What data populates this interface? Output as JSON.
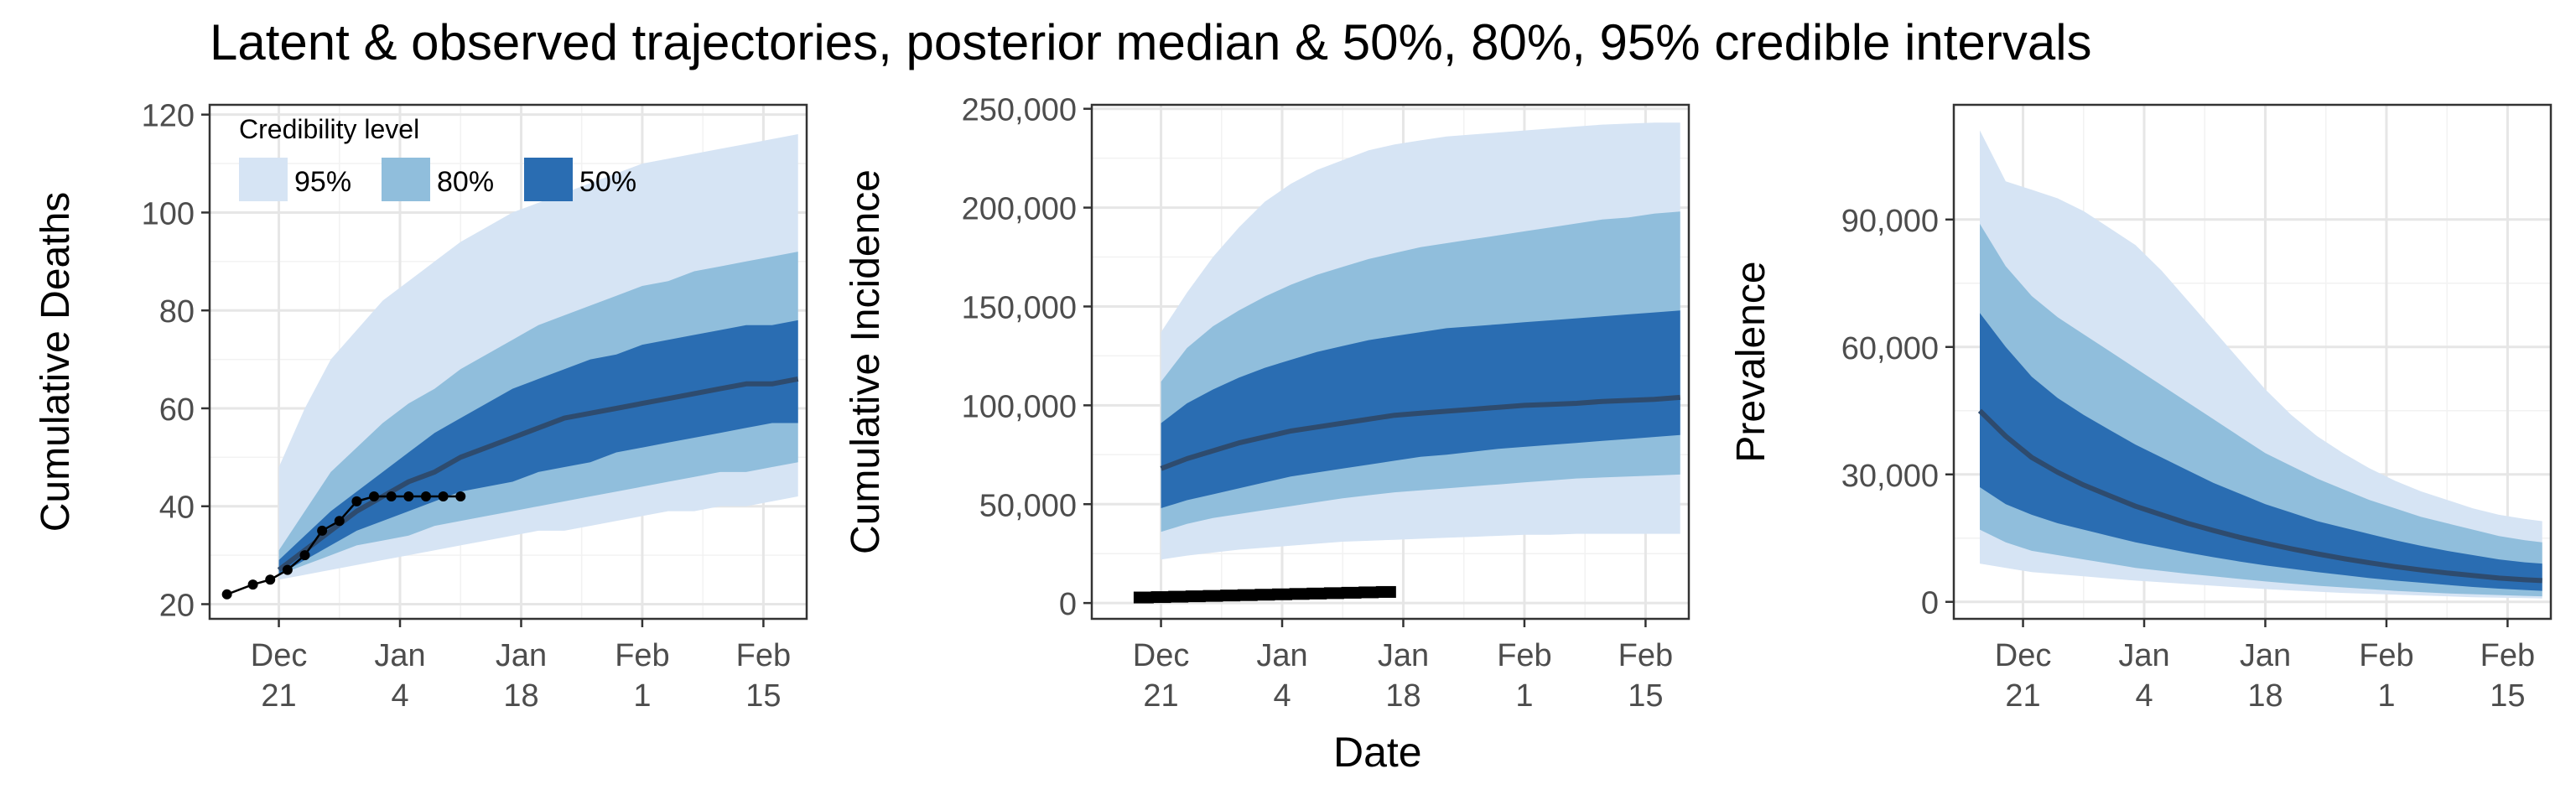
{
  "title": "Latent & observed trajectories, posterior median & 50%, 80%, 95% credible intervals",
  "xlabel": "Date",
  "colors": {
    "band95": "#d6e4f4",
    "band80": "#90bedc",
    "band50": "#2a6db2",
    "median": "#2e4b6e",
    "observed": "#000000",
    "grid_major": "#e6e6e6",
    "grid_minor": "#f2f2f2",
    "border": "#333333"
  },
  "legend": {
    "title": "Credibility level",
    "items": [
      {
        "label": "95%",
        "color": "#d6e4f4"
      },
      {
        "label": "80%",
        "color": "#90bedc"
      },
      {
        "label": "50%",
        "color": "#2a6db2"
      }
    ]
  },
  "chart_data": [
    {
      "type": "area",
      "ylabel": "Cumulative Deaths",
      "x_ticks": [
        [
          "Dec",
          "21"
        ],
        [
          "Jan",
          "4"
        ],
        [
          "Jan",
          "18"
        ],
        [
          "Feb",
          "1"
        ],
        [
          "Feb",
          "15"
        ]
      ],
      "y_ticks": [
        "20",
        "40",
        "60",
        "80",
        "100",
        "120"
      ],
      "ylim": [
        17,
        122
      ],
      "xlim": [
        -8,
        61
      ],
      "bands": {
        "x": [
          0,
          3,
          6,
          9,
          12,
          15,
          18,
          21,
          24,
          27,
          30,
          33,
          36,
          39,
          42,
          45,
          48,
          51,
          54,
          57,
          60
        ],
        "q025": [
          25,
          26,
          27,
          28,
          29,
          30,
          31,
          32,
          33,
          34,
          35,
          35,
          36,
          37,
          38,
          39,
          39,
          40,
          40,
          41,
          42
        ],
        "q10": [
          26,
          28,
          30,
          32,
          33,
          34,
          36,
          37,
          38,
          39,
          40,
          41,
          42,
          43,
          44,
          45,
          46,
          47,
          47,
          48,
          49
        ],
        "q25": [
          26,
          29,
          32,
          35,
          37,
          39,
          41,
          43,
          44,
          45,
          47,
          48,
          49,
          51,
          52,
          53,
          54,
          55,
          56,
          57,
          57
        ],
        "median": [
          27,
          31,
          35,
          39,
          42,
          45,
          47,
          50,
          52,
          54,
          56,
          58,
          59,
          60,
          61,
          62,
          63,
          64,
          65,
          65,
          66
        ],
        "q75": [
          29,
          34,
          39,
          43,
          47,
          51,
          55,
          58,
          61,
          64,
          66,
          68,
          70,
          71,
          73,
          74,
          75,
          76,
          77,
          77,
          78
        ],
        "q90": [
          31,
          39,
          47,
          52,
          57,
          61,
          64,
          68,
          71,
          74,
          77,
          79,
          81,
          83,
          85,
          86,
          88,
          89,
          90,
          91,
          92
        ],
        "q975": [
          48,
          60,
          70,
          76,
          82,
          86,
          90,
          94,
          97,
          100,
          102,
          104,
          106,
          108,
          110,
          111,
          112,
          113,
          114,
          115,
          116
        ]
      },
      "observed": {
        "x": [
          -6,
          -3,
          -1,
          1,
          3,
          5,
          7,
          9,
          11,
          13,
          15,
          17,
          19,
          21
        ],
        "y": [
          22,
          24,
          25,
          27,
          30,
          35,
          37,
          41,
          42,
          42,
          42,
          42,
          42,
          42
        ]
      }
    },
    {
      "type": "area",
      "ylabel": "Cumulative Incidence",
      "x_ticks": [
        [
          "Dec",
          "21"
        ],
        [
          "Jan",
          "4"
        ],
        [
          "Jan",
          "18"
        ],
        [
          "Feb",
          "1"
        ],
        [
          "Feb",
          "15"
        ]
      ],
      "y_ticks": [
        "0",
        "50,000",
        "100,000",
        "150,000",
        "200,000",
        "250,000"
      ],
      "ylim": [
        -8000,
        252000
      ],
      "xlim": [
        -8,
        61
      ],
      "bands": {
        "x": [
          0,
          3,
          6,
          9,
          12,
          15,
          18,
          21,
          24,
          27,
          30,
          33,
          36,
          39,
          42,
          45,
          48,
          51,
          54,
          57,
          60
        ],
        "q025": [
          22000,
          24000,
          25500,
          27000,
          28000,
          29000,
          30000,
          31000,
          31500,
          32000,
          32500,
          33000,
          33500,
          34000,
          34500,
          34500,
          35000,
          35000,
          35000,
          35000,
          35000
        ],
        "q10": [
          36000,
          40000,
          43000,
          45000,
          47000,
          49000,
          51000,
          53000,
          54500,
          56000,
          57000,
          58000,
          59000,
          60000,
          61000,
          62000,
          63000,
          63500,
          64000,
          64500,
          65000
        ],
        "q25": [
          48000,
          52000,
          55000,
          58000,
          61000,
          64000,
          66000,
          68000,
          70000,
          72000,
          74000,
          75000,
          76500,
          78000,
          79000,
          80000,
          81000,
          82000,
          83000,
          84000,
          85000
        ],
        "median": [
          68000,
          73000,
          77000,
          81000,
          84000,
          87000,
          89000,
          91000,
          93000,
          95000,
          96000,
          97000,
          98000,
          99000,
          100000,
          100500,
          101000,
          102000,
          102500,
          103000,
          104000
        ],
        "q75": [
          91000,
          101000,
          108000,
          114000,
          119000,
          123000,
          127000,
          130000,
          133000,
          135000,
          137000,
          139000,
          140000,
          141000,
          142000,
          143000,
          144000,
          145000,
          146000,
          147000,
          148000
        ],
        "q90": [
          112000,
          129000,
          140000,
          148000,
          155000,
          161000,
          166000,
          170000,
          174000,
          177000,
          180000,
          182000,
          184000,
          186000,
          188000,
          190000,
          192000,
          194000,
          195000,
          197000,
          198000
        ],
        "q975": [
          137000,
          157000,
          175000,
          190000,
          203000,
          212000,
          219000,
          224000,
          229000,
          232000,
          234000,
          236000,
          237000,
          238000,
          239000,
          240000,
          241000,
          242000,
          242500,
          243000,
          243000
        ]
      },
      "observed": {
        "x": [
          -2,
          0,
          2,
          4,
          6,
          8,
          10,
          12,
          14,
          16,
          18,
          20,
          22,
          24,
          26
        ],
        "y": [
          2800,
          3000,
          3200,
          3400,
          3600,
          3800,
          4000,
          4200,
          4400,
          4600,
          4800,
          5000,
          5200,
          5400,
          5600
        ]
      }
    },
    {
      "type": "area",
      "ylabel": "Prevalence",
      "x_ticks": [
        [
          "Dec",
          "21"
        ],
        [
          "Jan",
          "4"
        ],
        [
          "Jan",
          "18"
        ],
        [
          "Feb",
          "1"
        ],
        [
          "Feb",
          "15"
        ]
      ],
      "y_ticks": [
        "0",
        "30,000",
        "60,000",
        "90,000"
      ],
      "ylim": [
        -4000,
        117000
      ],
      "xlim": [
        -8,
        61
      ],
      "bands": {
        "x": [
          -5,
          -2,
          1,
          4,
          7,
          10,
          13,
          16,
          19,
          22,
          25,
          28,
          31,
          34,
          37,
          40,
          43,
          46,
          49,
          52,
          55,
          58,
          60
        ],
        "q025": [
          9000,
          8000,
          7000,
          6500,
          6000,
          5500,
          5000,
          4600,
          4200,
          3800,
          3400,
          3000,
          2700,
          2400,
          2100,
          1900,
          1700,
          1500,
          1300,
          1100,
          1000,
          900,
          800
        ],
        "q10": [
          17000,
          14000,
          12000,
          11000,
          10000,
          9000,
          8000,
          7300,
          6600,
          6000,
          5400,
          4800,
          4300,
          3800,
          3400,
          3000,
          2600,
          2300,
          2000,
          1800,
          1600,
          1400,
          1300
        ],
        "q25": [
          27000,
          23000,
          20500,
          18500,
          17000,
          15500,
          14000,
          12800,
          11600,
          10500,
          9500,
          8600,
          7800,
          7000,
          6300,
          5600,
          5000,
          4500,
          4000,
          3500,
          3100,
          2800,
          2600
        ],
        "median": [
          45000,
          39000,
          34000,
          30500,
          27500,
          25000,
          22500,
          20500,
          18500,
          16800,
          15200,
          13800,
          12500,
          11300,
          10200,
          9200,
          8300,
          7500,
          6800,
          6200,
          5600,
          5200,
          5000
        ],
        "q75": [
          68000,
          60000,
          53000,
          48000,
          44000,
          40500,
          37000,
          34000,
          31000,
          28000,
          25500,
          23000,
          21000,
          19000,
          17500,
          16000,
          14500,
          13200,
          12000,
          11000,
          10000,
          9300,
          9000
        ],
        "q90": [
          89000,
          79000,
          72000,
          67000,
          63000,
          59000,
          55000,
          51000,
          47000,
          43000,
          39000,
          35000,
          32000,
          29000,
          26500,
          24000,
          22000,
          20000,
          18500,
          17000,
          15500,
          14500,
          14000
        ],
        "q975": [
          111000,
          99000,
          97000,
          95000,
          92000,
          88000,
          84000,
          78000,
          71000,
          64000,
          57000,
          50000,
          44000,
          39000,
          35000,
          31500,
          28500,
          26000,
          24000,
          22000,
          20500,
          19500,
          19000
        ]
      }
    }
  ]
}
